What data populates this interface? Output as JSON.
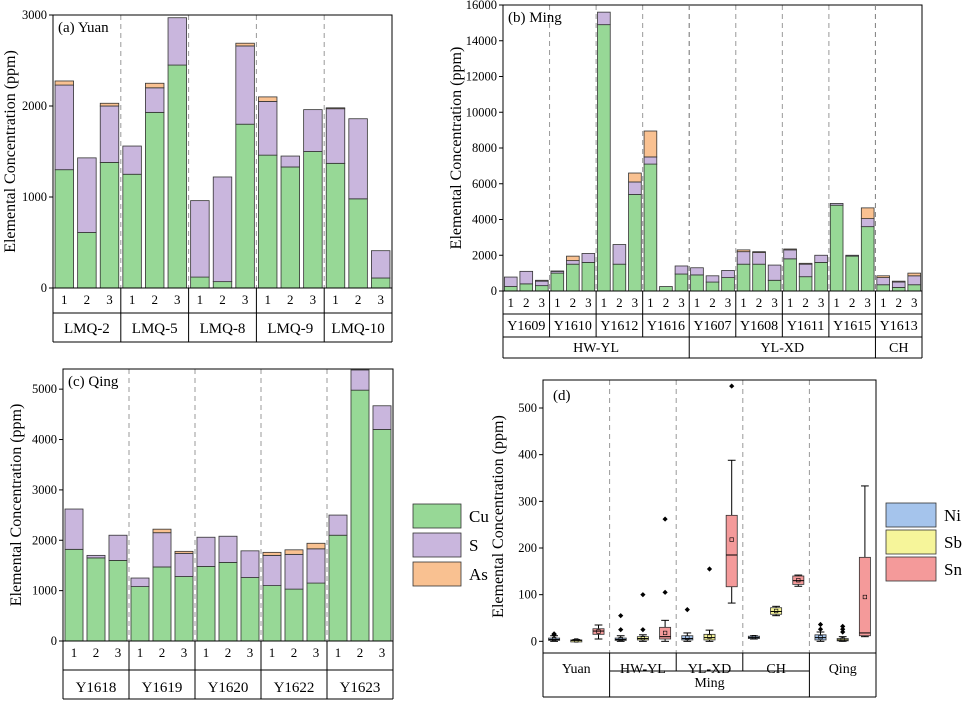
{
  "colors": {
    "Cu": "#97d896",
    "S": "#c9b6dd",
    "As": "#f9c191",
    "Ni": "#a5c4ec",
    "Sb": "#f6f59a",
    "Sn": "#f49a9a"
  },
  "ylabel_conc": "Elemental Concentration (ppm)",
  "legend_stack": [
    "Cu",
    "S",
    "As"
  ],
  "legend_box": [
    "Ni",
    "Sb",
    "Sn"
  ],
  "chart_data": [
    {
      "id": "a",
      "type": "bar",
      "stacked": true,
      "title": "(a) Yuan",
      "ylabel": "Elemental Concentration (ppm)",
      "ylim": [
        0,
        3000
      ],
      "yticks": [
        0,
        1000,
        2000,
        3000
      ],
      "series_names": [
        "Cu",
        "S",
        "As"
      ],
      "groups": [
        {
          "label": "LMQ-2",
          "bars": [
            {
              "x": "1",
              "Cu": 1300,
              "S": 930,
              "As": 45
            },
            {
              "x": "2",
              "Cu": 610,
              "S": 820,
              "As": 0
            },
            {
              "x": "3",
              "Cu": 1380,
              "S": 620,
              "As": 30
            }
          ]
        },
        {
          "label": "LMQ-5",
          "bars": [
            {
              "x": "1",
              "Cu": 1250,
              "S": 310,
              "As": 0
            },
            {
              "x": "2",
              "Cu": 1930,
              "S": 270,
              "As": 50
            },
            {
              "x": "3",
              "Cu": 2450,
              "S": 520,
              "As": 0
            }
          ]
        },
        {
          "label": "LMQ-8",
          "bars": [
            {
              "x": "1",
              "Cu": 120,
              "S": 840,
              "As": 0
            },
            {
              "x": "2",
              "Cu": 70,
              "S": 1150,
              "As": 0
            },
            {
              "x": "3",
              "Cu": 1800,
              "S": 860,
              "As": 30
            }
          ]
        },
        {
          "label": "LMQ-9",
          "bars": [
            {
              "x": "1",
              "Cu": 1460,
              "S": 590,
              "As": 50
            },
            {
              "x": "2",
              "Cu": 1330,
              "S": 120,
              "As": 0
            },
            {
              "x": "3",
              "Cu": 1500,
              "S": 460,
              "As": 0
            }
          ]
        },
        {
          "label": "LMQ-10",
          "bars": [
            {
              "x": "1",
              "Cu": 1370,
              "S": 600,
              "As": 10
            },
            {
              "x": "2",
              "Cu": 980,
              "S": 880,
              "As": 0
            },
            {
              "x": "3",
              "Cu": 110,
              "S": 300,
              "As": 0
            }
          ]
        }
      ]
    },
    {
      "id": "b",
      "type": "bar",
      "stacked": true,
      "title": "(b) Ming",
      "ylabel": "Elemental Concentration (ppm)",
      "ylim": [
        0,
        16000
      ],
      "yticks": [
        0,
        2000,
        4000,
        6000,
        8000,
        10000,
        12000,
        14000,
        16000
      ],
      "series_names": [
        "Cu",
        "S",
        "As"
      ],
      "groups": [
        {
          "label": "Y1609",
          "bars": [
            {
              "x": "1",
              "Cu": 250,
              "S": 530,
              "As": 0
            },
            {
              "x": "2",
              "Cu": 400,
              "S": 700,
              "As": 0
            },
            {
              "x": "3",
              "Cu": 300,
              "S": 250,
              "As": 50
            }
          ]
        },
        {
          "label": "Y1610",
          "bars": [
            {
              "x": "1",
              "Cu": 1000,
              "S": 100,
              "As": 20
            },
            {
              "x": "2",
              "Cu": 1500,
              "S": 200,
              "As": 250
            },
            {
              "x": "3",
              "Cu": 1600,
              "S": 500,
              "As": 0
            }
          ]
        },
        {
          "label": "Y1612",
          "bars": [
            {
              "x": "1",
              "Cu": 14900,
              "S": 700,
              "As": 0
            },
            {
              "x": "2",
              "Cu": 1500,
              "S": 1100,
              "As": 0
            },
            {
              "x": "3",
              "Cu": 5400,
              "S": 700,
              "As": 500
            }
          ]
        },
        {
          "label": "Y1616",
          "bars": [
            {
              "x": "1",
              "Cu": 7100,
              "S": 400,
              "As": 1450
            },
            {
              "x": "2",
              "Cu": 250,
              "S": 0,
              "As": 0
            },
            {
              "x": "3",
              "Cu": 950,
              "S": 450,
              "As": 0
            }
          ]
        },
        {
          "label": "Y1607",
          "bars": [
            {
              "x": "1",
              "Cu": 900,
              "S": 400,
              "As": 0
            },
            {
              "x": "2",
              "Cu": 500,
              "S": 350,
              "As": 0
            },
            {
              "x": "3",
              "Cu": 750,
              "S": 400,
              "As": 0
            }
          ]
        },
        {
          "label": "Y1608",
          "bars": [
            {
              "x": "1",
              "Cu": 1500,
              "S": 700,
              "As": 100
            },
            {
              "x": "2",
              "Cu": 1500,
              "S": 650,
              "As": 50
            },
            {
              "x": "3",
              "Cu": 600,
              "S": 850,
              "As": 0
            }
          ]
        },
        {
          "label": "Y1611",
          "bars": [
            {
              "x": "1",
              "Cu": 1800,
              "S": 500,
              "As": 50
            },
            {
              "x": "2",
              "Cu": 800,
              "S": 700,
              "As": 50
            },
            {
              "x": "3",
              "Cu": 1600,
              "S": 400,
              "As": 0
            }
          ]
        },
        {
          "label": "Y1615",
          "bars": [
            {
              "x": "1",
              "Cu": 4800,
              "S": 100,
              "As": 0
            },
            {
              "x": "2",
              "Cu": 1950,
              "S": 50,
              "As": 0
            },
            {
              "x": "3",
              "Cu": 3600,
              "S": 450,
              "As": 600
            }
          ]
        },
        {
          "label": "Y1613",
          "bars": [
            {
              "x": "1",
              "Cu": 350,
              "S": 400,
              "As": 100
            },
            {
              "x": "2",
              "Cu": 200,
              "S": 300,
              "As": 50
            },
            {
              "x": "3",
              "Cu": 350,
              "S": 500,
              "As": 150
            }
          ]
        }
      ],
      "supergroups": [
        {
          "label": "HW-YL",
          "count": 4
        },
        {
          "label": "YL-XD",
          "count": 4
        },
        {
          "label": "CH",
          "count": 1
        }
      ]
    },
    {
      "id": "c",
      "type": "bar",
      "stacked": true,
      "title": "(c) Qing",
      "ylabel": "Elemental Concentration (ppm)",
      "ylim": [
        0,
        5400
      ],
      "yticks": [
        0,
        1000,
        2000,
        3000,
        4000,
        5000
      ],
      "series_names": [
        "Cu",
        "S",
        "As"
      ],
      "groups": [
        {
          "label": "Y1618",
          "bars": [
            {
              "x": "1",
              "Cu": 1820,
              "S": 800,
              "As": 0
            },
            {
              "x": "2",
              "Cu": 1650,
              "S": 50,
              "As": 0
            },
            {
              "x": "3",
              "Cu": 1600,
              "S": 500,
              "As": 0
            }
          ]
        },
        {
          "label": "Y1619",
          "bars": [
            {
              "x": "1",
              "Cu": 1080,
              "S": 170,
              "As": 0
            },
            {
              "x": "2",
              "Cu": 1470,
              "S": 680,
              "As": 70
            },
            {
              "x": "3",
              "Cu": 1280,
              "S": 460,
              "As": 40
            }
          ]
        },
        {
          "label": "Y1620",
          "bars": [
            {
              "x": "1",
              "Cu": 1480,
              "S": 580,
              "As": 0
            },
            {
              "x": "2",
              "Cu": 1560,
              "S": 520,
              "As": 0
            },
            {
              "x": "3",
              "Cu": 1260,
              "S": 530,
              "As": 0
            }
          ]
        },
        {
          "label": "Y1622",
          "bars": [
            {
              "x": "1",
              "Cu": 1100,
              "S": 600,
              "As": 60
            },
            {
              "x": "2",
              "Cu": 1030,
              "S": 690,
              "As": 90
            },
            {
              "x": "3",
              "Cu": 1150,
              "S": 680,
              "As": 110
            }
          ]
        },
        {
          "label": "Y1623",
          "bars": [
            {
              "x": "1",
              "Cu": 2100,
              "S": 400,
              "As": 0
            },
            {
              "x": "2",
              "Cu": 4980,
              "S": 400,
              "As": 0
            },
            {
              "x": "3",
              "Cu": 4200,
              "S": 470,
              "As": 0
            }
          ]
        }
      ]
    },
    {
      "id": "d",
      "type": "box",
      "title": "(d)",
      "ylabel": "Elemental Concentration (ppm)",
      "ylim": [
        -25,
        560
      ],
      "yticks": [
        0,
        100,
        200,
        300,
        400,
        500
      ],
      "groups": [
        {
          "label": "Yuan",
          "boxes": [
            {
              "el": "Ni",
              "min": 0,
              "q1": 2,
              "median": 4,
              "q3": 7,
              "max": 12,
              "mean": 5,
              "outliers": [
                14,
                16
              ]
            },
            {
              "el": "Sb",
              "min": 0,
              "q1": 1,
              "median": 2,
              "q3": 3,
              "max": 4,
              "mean": 2,
              "outliers": []
            },
            {
              "el": "Sn",
              "min": 5,
              "q1": 15,
              "median": 22,
              "q3": 27,
              "max": 35,
              "mean": 21,
              "outliers": []
            }
          ]
        },
        {
          "label": "HW-YL",
          "boxes": [
            {
              "el": "Ni",
              "min": 0,
              "q1": 2,
              "median": 4,
              "q3": 7,
              "max": 12,
              "mean": 5,
              "outliers": [
                25,
                55
              ]
            },
            {
              "el": "Sb",
              "min": 0,
              "q1": 3,
              "median": 6,
              "q3": 10,
              "max": 14,
              "mean": 7,
              "outliers": [
                25,
                100
              ]
            },
            {
              "el": "Sn",
              "min": 0,
              "q1": 5,
              "median": 10,
              "q3": 30,
              "max": 45,
              "mean": 18,
              "outliers": [
                105,
                262
              ]
            }
          ]
        },
        {
          "label": "YL-XD",
          "boxes": [
            {
              "el": "Ni",
              "min": 0,
              "q1": 3,
              "median": 6,
              "q3": 12,
              "max": 18,
              "mean": 8,
              "outliers": [
                68
              ]
            },
            {
              "el": "Sb",
              "min": 0,
              "q1": 3,
              "median": 8,
              "q3": 15,
              "max": 24,
              "mean": 10,
              "outliers": [
                155
              ]
            },
            {
              "el": "Sn",
              "min": 82,
              "q1": 117,
              "median": 185,
              "q3": 270,
              "max": 388,
              "mean": 218,
              "outliers": [
                547
              ]
            }
          ]
        },
        {
          "label": "CH",
          "boxes": [
            {
              "el": "Ni",
              "min": 5,
              "q1": 6,
              "median": 8,
              "q3": 11,
              "max": 12,
              "mean": 9,
              "outliers": []
            },
            {
              "el": "Sb",
              "min": 55,
              "q1": 58,
              "median": 64,
              "q3": 72,
              "max": 75,
              "mean": 65,
              "outliers": []
            },
            {
              "el": "Sn",
              "min": 118,
              "q1": 122,
              "median": 130,
              "q3": 140,
              "max": 142,
              "mean": 131,
              "outliers": []
            }
          ]
        },
        {
          "label": "Qing",
          "boxes": [
            {
              "el": "Ni",
              "min": 0,
              "q1": 3,
              "median": 8,
              "q3": 14,
              "max": 20,
              "mean": 9,
              "outliers": [
                26,
                36
              ]
            },
            {
              "el": "Sb",
              "min": 0,
              "q1": 1,
              "median": 3,
              "q3": 6,
              "max": 10,
              "mean": 4,
              "outliers": [
                20,
                26,
                32
              ]
            },
            {
              "el": "Sn",
              "min": 10,
              "q1": 12,
              "median": 18,
              "q3": 180,
              "max": 333,
              "mean": 95,
              "outliers": []
            }
          ]
        }
      ],
      "supergroups": [
        {
          "label": "",
          "count": 1
        },
        {
          "label": "Ming",
          "count": 3
        },
        {
          "label": "",
          "count": 1
        }
      ]
    }
  ]
}
